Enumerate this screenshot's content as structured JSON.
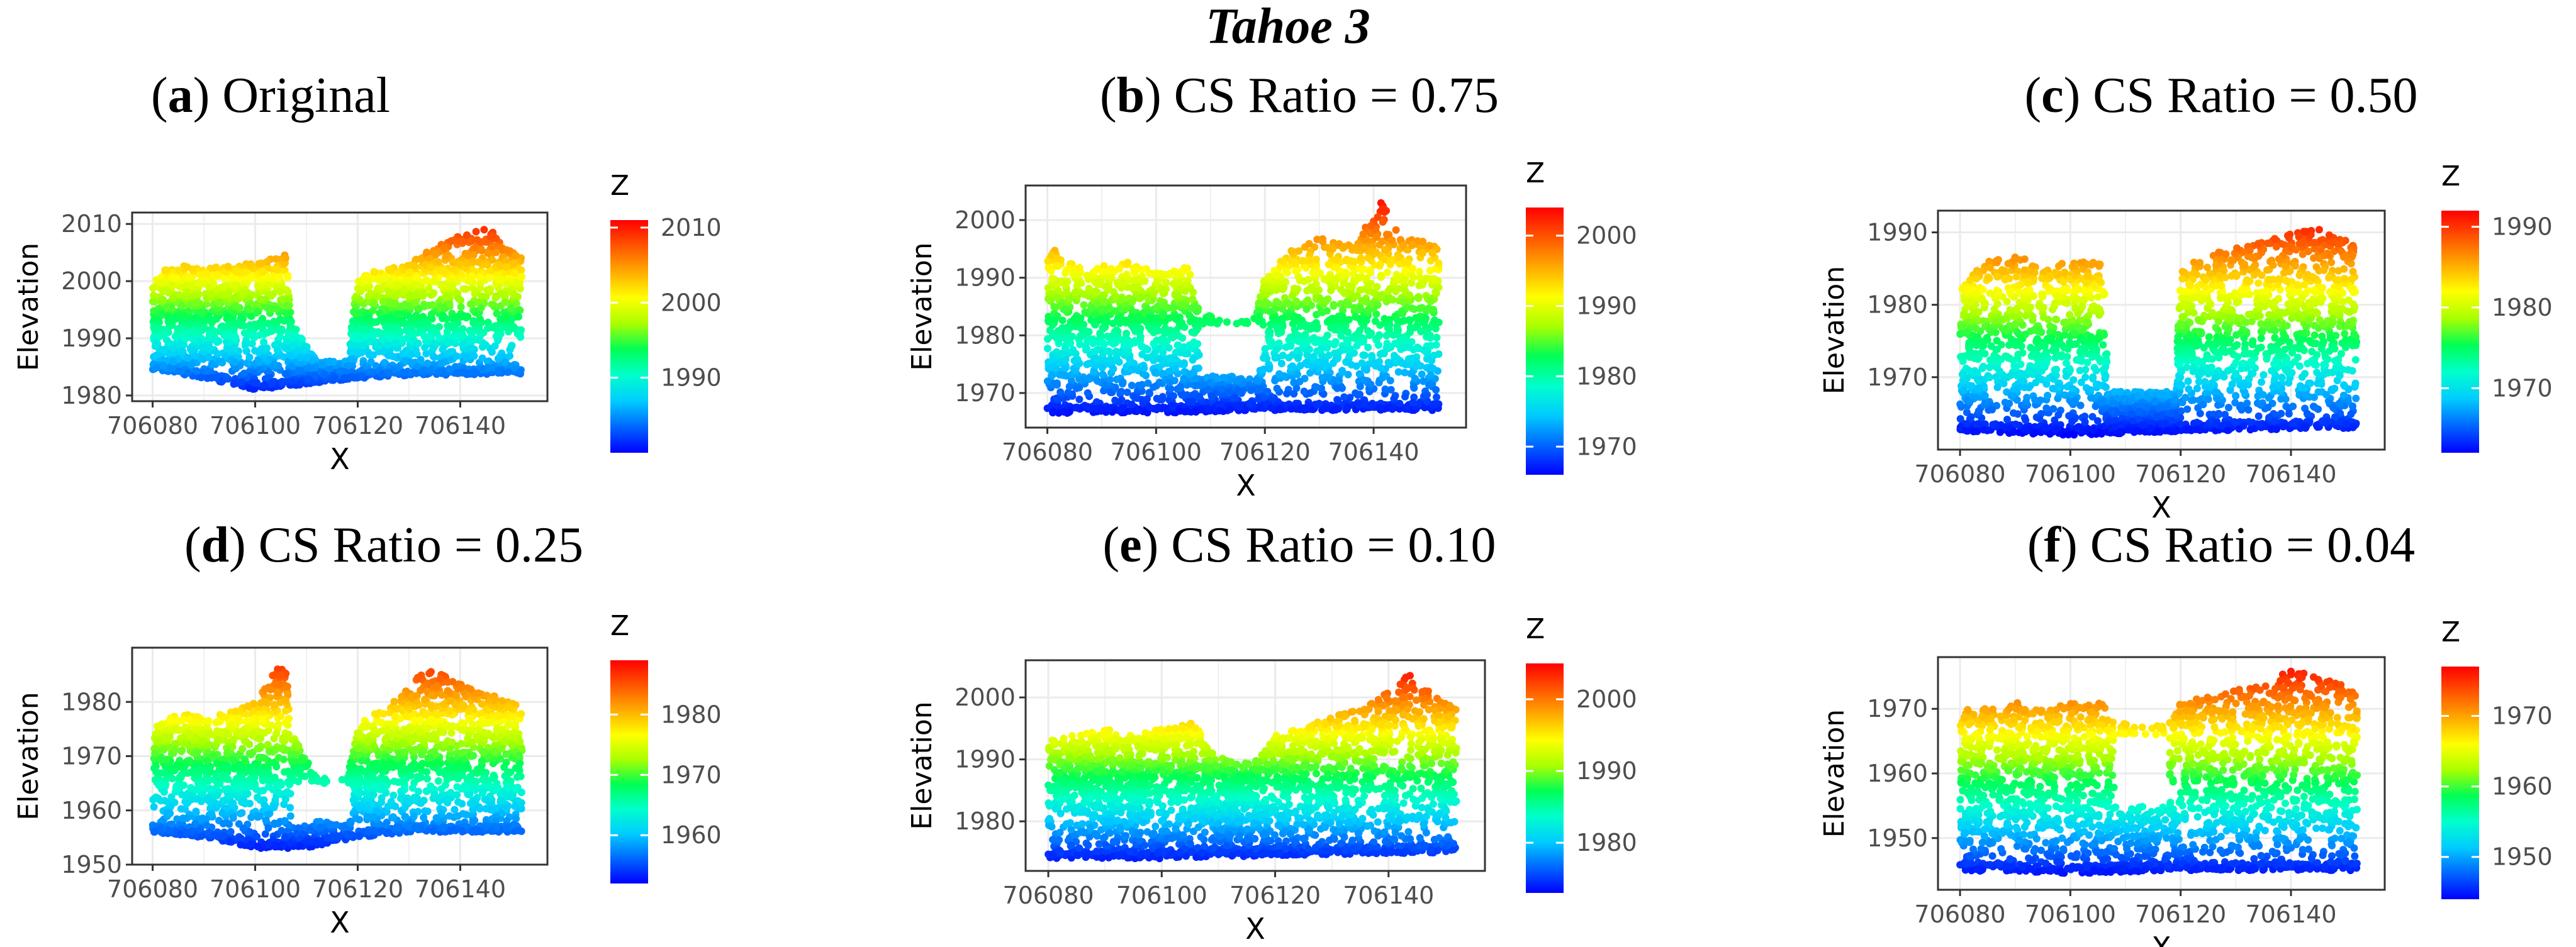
{
  "figure_title": "Tahoe 3",
  "colors": {
    "gradient": [
      "#0000ff",
      "#0066ff",
      "#00ccff",
      "#00ffcc",
      "#00ff55",
      "#aaff00",
      "#ffff00",
      "#ffaa00",
      "#ff5500",
      "#ff0000"
    ]
  },
  "chart_data": [
    {
      "type": "scatter",
      "panel": "a",
      "title": "Original",
      "xlabel": "X",
      "ylabel": "Elevation",
      "xlim": [
        706076,
        706157
      ],
      "ylim": [
        1979,
        2012
      ],
      "xticks": [
        706080,
        706100,
        706120,
        706140
      ],
      "yticks": [
        1980,
        1990,
        2000,
        2010
      ],
      "legend_title": "Z",
      "color_range": [
        1980,
        2011
      ],
      "color_ticks": [
        1990,
        2000,
        2010
      ],
      "ground": [
        [
          706080,
          1984.5
        ],
        [
          706090,
          1983
        ],
        [
          706100,
          1981
        ],
        [
          706110,
          1982
        ],
        [
          706120,
          1983
        ],
        [
          706130,
          1983.5
        ],
        [
          706152,
          1983.8
        ]
      ],
      "canopy": [
        [
          706080,
          2001
        ],
        [
          706085,
          2003
        ],
        [
          706090,
          2002
        ],
        [
          706095,
          2003
        ],
        [
          706100,
          2003
        ],
        [
          706106,
          2005
        ],
        [
          706107,
          1993
        ],
        [
          706112,
          1986
        ],
        [
          706118,
          1986
        ],
        [
          706120,
          2001
        ],
        [
          706125,
          2002
        ],
        [
          706130,
          2003
        ],
        [
          706135,
          2006
        ],
        [
          706140,
          2008
        ],
        [
          706145,
          2010
        ],
        [
          706148,
          2007
        ],
        [
          706152,
          2004
        ]
      ],
      "gap": null
    },
    {
      "type": "scatter",
      "panel": "b",
      "title": "CS Ratio = 0.75",
      "xlabel": "X",
      "ylabel": "Elevation",
      "xlim": [
        706076,
        706157
      ],
      "ylim": [
        1964,
        2006
      ],
      "xticks": [
        706080,
        706100,
        706120,
        706140
      ],
      "yticks": [
        1970,
        1980,
        1990,
        2000
      ],
      "legend_title": "Z",
      "color_range": [
        1966,
        2004
      ],
      "color_ticks": [
        1970,
        1980,
        1990,
        2000
      ],
      "ground": [
        [
          706080,
          1966.5
        ],
        [
          706100,
          1966.5
        ],
        [
          706120,
          1967
        ],
        [
          706152,
          1967
        ]
      ],
      "canopy": [
        [
          706080,
          1996
        ],
        [
          706085,
          1992
        ],
        [
          706090,
          1992
        ],
        [
          706095,
          1993
        ],
        [
          706100,
          1991
        ],
        [
          706106,
          1992
        ],
        [
          706108,
          1984
        ],
        [
          706114,
          1982
        ],
        [
          706118,
          1983
        ],
        [
          706120,
          1990
        ],
        [
          706125,
          1995
        ],
        [
          706130,
          1997
        ],
        [
          706135,
          1996
        ],
        [
          706140,
          2000
        ],
        [
          706141,
          2004
        ],
        [
          706145,
          1997
        ],
        [
          706152,
          1996
        ]
      ],
      "gap": [
        706108,
        706119,
        1973,
        1982
      ]
    },
    {
      "type": "scatter",
      "panel": "c",
      "title": "CS Ratio = 0.50",
      "xlabel": "X",
      "ylabel": "Elevation",
      "xlim": [
        706076,
        706157
      ],
      "ylim": [
        1960,
        1993
      ],
      "xticks": [
        706080,
        706100,
        706120,
        706140
      ],
      "yticks": [
        1970,
        1980,
        1990
      ],
      "legend_title": "Z",
      "color_range": [
        1962,
        1992
      ],
      "color_ticks": [
        1970,
        1980,
        1990
      ],
      "ground": [
        [
          706080,
          1962.5
        ],
        [
          706100,
          1962
        ],
        [
          706120,
          1962.5
        ],
        [
          706152,
          1963
        ]
      ],
      "canopy": [
        [
          706080,
          1983
        ],
        [
          706085,
          1986
        ],
        [
          706090,
          1987
        ],
        [
          706095,
          1985
        ],
        [
          706100,
          1986
        ],
        [
          706106,
          1986
        ],
        [
          706107,
          1968
        ],
        [
          706119,
          1968
        ],
        [
          706120,
          1985
        ],
        [
          706125,
          1987
        ],
        [
          706130,
          1988
        ],
        [
          706135,
          1989
        ],
        [
          706140,
          1990
        ],
        [
          706145,
          1991
        ],
        [
          706152,
          1988
        ]
      ],
      "gap": [
        706107,
        706119,
        1968,
        1993
      ]
    },
    {
      "type": "scatter",
      "panel": "d",
      "title": "CS Ratio = 0.25",
      "xlabel": "X",
      "ylabel": "Elevation",
      "xlim": [
        706076,
        706157
      ],
      "ylim": [
        1950,
        1990
      ],
      "xticks": [
        706080,
        706100,
        706120,
        706140
      ],
      "yticks": [
        1950,
        1960,
        1970,
        1980
      ],
      "legend_title": "Z",
      "color_range": [
        1952,
        1989
      ],
      "color_ticks": [
        1960,
        1970,
        1980
      ],
      "ground": [
        [
          706080,
          1956
        ],
        [
          706090,
          1955
        ],
        [
          706100,
          1953
        ],
        [
          706110,
          1953
        ],
        [
          706120,
          1955
        ],
        [
          706130,
          1956
        ],
        [
          706152,
          1956
        ]
      ],
      "canopy": [
        [
          706080,
          1975
        ],
        [
          706085,
          1978
        ],
        [
          706090,
          1977
        ],
        [
          706095,
          1978
        ],
        [
          706100,
          1980
        ],
        [
          706104,
          1986
        ],
        [
          706106,
          1987
        ],
        [
          706107,
          1975
        ],
        [
          706112,
          1966
        ],
        [
          706118,
          1966
        ],
        [
          706120,
          1976
        ],
        [
          706125,
          1979
        ],
        [
          706130,
          1983
        ],
        [
          706134,
          1987
        ],
        [
          706138,
          1984
        ],
        [
          706145,
          1982
        ],
        [
          706152,
          1979
        ]
      ],
      "gap": [
        706107,
        706119,
        1958,
        1965
      ]
    },
    {
      "type": "scatter",
      "panel": "e",
      "title": "CS Ratio = 0.10",
      "xlabel": "X",
      "ylabel": "Elevation",
      "xlim": [
        706076,
        706157
      ],
      "ylim": [
        1972,
        2006
      ],
      "xticks": [
        706080,
        706100,
        706120,
        706140
      ],
      "yticks": [
        1980,
        1990,
        2000
      ],
      "legend_title": "Z",
      "color_range": [
        1973,
        2005
      ],
      "color_ticks": [
        1980,
        1990,
        2000
      ],
      "ground": [
        [
          706080,
          1974
        ],
        [
          706100,
          1974
        ],
        [
          706120,
          1974.5
        ],
        [
          706152,
          1975
        ]
      ],
      "canopy": [
        [
          706080,
          1993
        ],
        [
          706085,
          1994
        ],
        [
          706090,
          1995
        ],
        [
          706095,
          1994
        ],
        [
          706100,
          1995
        ],
        [
          706106,
          1996
        ],
        [
          706108,
          1992
        ],
        [
          706114,
          1989
        ],
        [
          706118,
          1991
        ],
        [
          706120,
          1994
        ],
        [
          706125,
          1995
        ],
        [
          706130,
          1997
        ],
        [
          706135,
          1998
        ],
        [
          706140,
          2001
        ],
        [
          706143,
          2004
        ],
        [
          706148,
          2001
        ],
        [
          706152,
          1998
        ]
      ],
      "gap": null
    },
    {
      "type": "scatter",
      "panel": "f",
      "title": "CS Ratio = 0.04",
      "xlabel": "X",
      "ylabel": "Elevation",
      "xlim": [
        706076,
        706157
      ],
      "ylim": [
        1942,
        1978
      ],
      "xticks": [
        706080,
        706100,
        706120,
        706140
      ],
      "yticks": [
        1950,
        1960,
        1970
      ],
      "legend_title": "Z",
      "color_range": [
        1944,
        1977
      ],
      "color_ticks": [
        1950,
        1960,
        1970
      ],
      "ground": [
        [
          706080,
          1945
        ],
        [
          706100,
          1944.5
        ],
        [
          706120,
          1945
        ],
        [
          706152,
          1945
        ]
      ],
      "canopy": [
        [
          706080,
          1970
        ],
        [
          706085,
          1970
        ],
        [
          706090,
          1971
        ],
        [
          706095,
          1970
        ],
        [
          706100,
          1971
        ],
        [
          706106,
          1971
        ],
        [
          706108,
          1968
        ],
        [
          706114,
          1967
        ],
        [
          706118,
          1968
        ],
        [
          706120,
          1971
        ],
        [
          706125,
          1972
        ],
        [
          706130,
          1973
        ],
        [
          706135,
          1974
        ],
        [
          706140,
          1976
        ],
        [
          706145,
          1975
        ],
        [
          706152,
          1973
        ]
      ],
      "gap": [
        706108,
        706118,
        1955,
        1966
      ]
    }
  ]
}
